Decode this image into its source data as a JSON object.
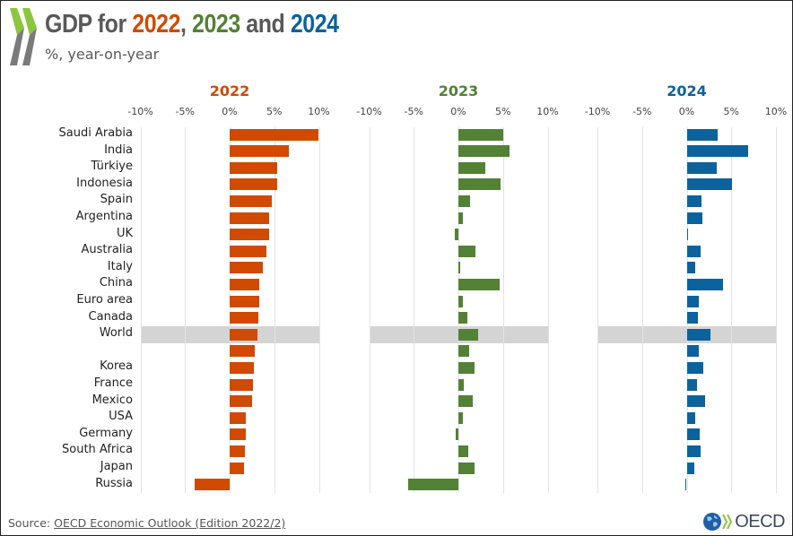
{
  "header": {
    "title_prefix": "GDP for ",
    "title_year1": "2022",
    "title_sep1": ", ",
    "title_year2": "2023",
    "title_sep2": " and ",
    "title_year3": "2024",
    "subtitle": "%, year-on-year"
  },
  "footer": {
    "source_label": "Source: ",
    "source_link": "OECD Economic Outlook (Edition 2022/2)",
    "brand": "OECD"
  },
  "colors": {
    "2022": "#D04A02",
    "2023": "#538135",
    "2024": "#0B629D",
    "title_gray": "#595959",
    "highlight": "#D4D4D4"
  },
  "chart_data": {
    "type": "bar",
    "orientation": "horizontal",
    "title": "GDP for 2022, 2023 and 2024",
    "subtitle": "%, year-on-year",
    "xlabel": "",
    "ylabel": "",
    "xlim": [
      -10,
      10
    ],
    "x_ticks": [
      "-10%",
      "-5%",
      "0%",
      "5%",
      "10%"
    ],
    "x_tick_values": [
      -10,
      -5,
      0,
      5,
      10
    ],
    "grid": true,
    "highlighted_category": "World",
    "categories": [
      "Saudi Arabia",
      "India",
      "Türkiye",
      "Indonesia",
      "Spain",
      "Argentina",
      "UK",
      "Australia",
      "Italy",
      "China",
      "Euro area",
      "Canada",
      "World",
      "",
      "Korea",
      "France",
      "Mexico",
      "USA",
      "Germany",
      "South Africa",
      "Japan",
      "Russia"
    ],
    "series": [
      {
        "name": "2022",
        "color": "#D04A02",
        "values": [
          9.9,
          6.6,
          5.3,
          5.3,
          4.7,
          4.4,
          4.4,
          4.1,
          3.7,
          3.3,
          3.3,
          3.2,
          3.1,
          2.8,
          2.7,
          2.6,
          2.5,
          1.8,
          1.8,
          1.7,
          1.6,
          -3.9
        ]
      },
      {
        "name": "2023",
        "color": "#538135",
        "values": [
          5.0,
          5.7,
          3.0,
          4.7,
          1.3,
          0.5,
          -0.4,
          1.9,
          0.2,
          4.6,
          0.5,
          1.0,
          2.2,
          1.2,
          1.8,
          0.6,
          1.6,
          0.5,
          -0.3,
          1.1,
          1.8,
          -5.6
        ]
      },
      {
        "name": "2024",
        "color": "#0B629D",
        "values": [
          3.5,
          6.9,
          3.4,
          5.1,
          1.7,
          1.8,
          0.2,
          1.6,
          1.0,
          4.1,
          1.4,
          1.3,
          2.7,
          1.4,
          1.9,
          1.2,
          2.1,
          1.0,
          1.5,
          1.6,
          0.9,
          -0.2
        ]
      }
    ]
  }
}
